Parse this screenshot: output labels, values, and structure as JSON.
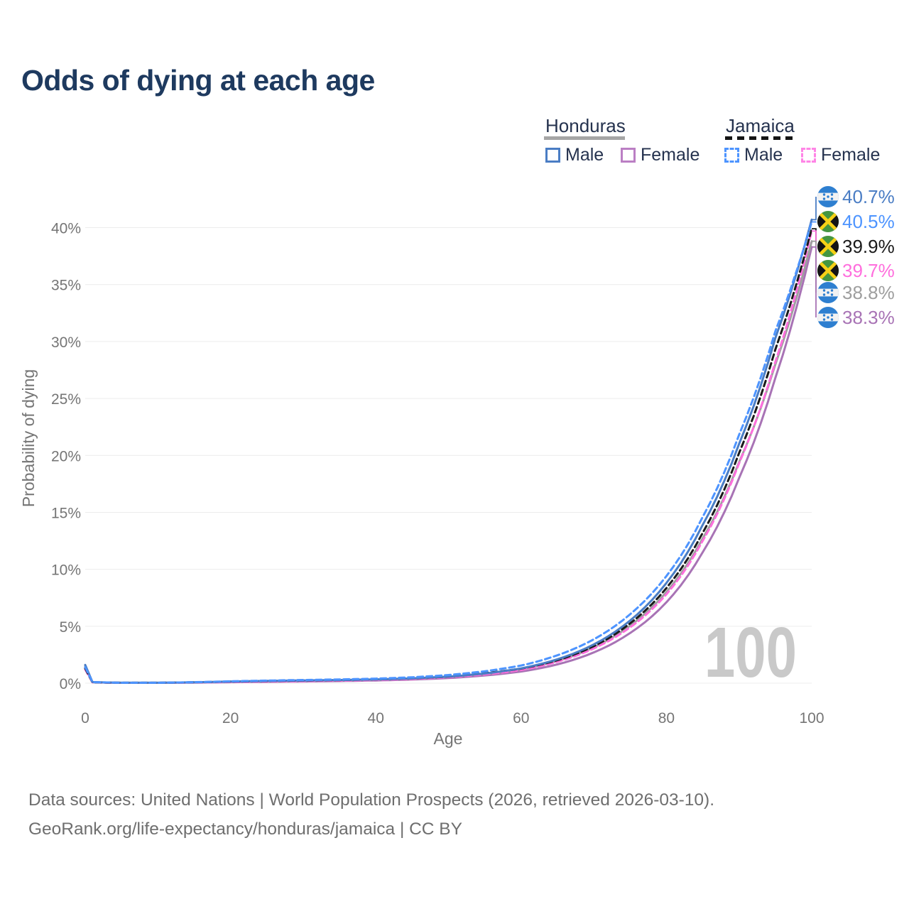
{
  "title": "Odds of dying at each age",
  "legend": {
    "groups": [
      {
        "label": "Honduras",
        "line_style": "solid",
        "underline_color": "#a5a5a5"
      },
      {
        "label": "Jamaica",
        "line_style": "dashed",
        "underline_color": "#141414"
      }
    ],
    "items": [
      {
        "country": "Honduras",
        "label": "Male",
        "color": "#4a7dc4",
        "dashed": false
      },
      {
        "country": "Honduras",
        "label": "Female",
        "color": "#a873b5",
        "dashed": false
      },
      {
        "country": "Jamaica",
        "label": "Male",
        "color": "#4d94ff",
        "dashed": true
      },
      {
        "country": "Jamaica",
        "label": "Female",
        "color": "#ff6edd",
        "dashed": true
      }
    ]
  },
  "axes": {
    "x_title": "Age",
    "y_title": "Probability of dying",
    "x_ticks": [
      "0",
      "20",
      "40",
      "60",
      "80",
      "100"
    ],
    "y_ticks": [
      "0%",
      "5%",
      "10%",
      "15%",
      "20%",
      "25%",
      "30%",
      "35%",
      "40%"
    ],
    "x_range": [
      0,
      100
    ],
    "y_range_percent": [
      0,
      40
    ],
    "grid": "horizontal",
    "tick_color": "#757575",
    "grid_color": "#ececec"
  },
  "watermark": "100",
  "chart_data": {
    "type": "line",
    "title": "Odds of dying at each age",
    "xlabel": "Age",
    "ylabel": "Probability of dying",
    "xlim": [
      0,
      100
    ],
    "ylim_percent": [
      0,
      40
    ],
    "x": [
      0,
      1,
      5,
      10,
      15,
      20,
      25,
      30,
      35,
      40,
      45,
      50,
      55,
      60,
      65,
      70,
      75,
      80,
      85,
      90,
      95,
      100
    ],
    "series": [
      {
        "name": "Honduras Male",
        "country": "Honduras",
        "sex": "male",
        "color": "#4a7dc4",
        "dashed": false,
        "end_label": "40.7%",
        "values": [
          1.6,
          0.1,
          0.04,
          0.04,
          0.08,
          0.15,
          0.2,
          0.24,
          0.28,
          0.33,
          0.42,
          0.58,
          0.85,
          1.3,
          2.1,
          3.4,
          5.5,
          8.8,
          13.9,
          21.0,
          30.3,
          40.7
        ]
      },
      {
        "name": "Honduras Female",
        "country": "Honduras",
        "sex": "female",
        "color": "#a873b5",
        "dashed": false,
        "end_label": "38.3%",
        "values": [
          1.35,
          0.08,
          0.03,
          0.03,
          0.05,
          0.09,
          0.12,
          0.15,
          0.19,
          0.24,
          0.32,
          0.45,
          0.68,
          1.02,
          1.65,
          2.7,
          4.4,
          7.1,
          11.5,
          18.0,
          26.8,
          38.3
        ]
      },
      {
        "name": "Honduras Both sexes",
        "country": "Honduras",
        "sex": "all",
        "color": "#9e9e9e",
        "dashed": false,
        "end_label": "38.8%",
        "values": [
          1.5,
          0.09,
          0.035,
          0.035,
          0.07,
          0.12,
          0.17,
          0.21,
          0.25,
          0.3,
          0.39,
          0.54,
          0.8,
          1.22,
          1.95,
          3.15,
          5.05,
          8.0,
          12.7,
          19.4,
          28.0,
          38.8
        ]
      },
      {
        "name": "Jamaica Male",
        "country": "Jamaica",
        "sex": "male",
        "color": "#4d94ff",
        "dashed": true,
        "end_label": "40.5%",
        "values": [
          1.4,
          0.09,
          0.04,
          0.04,
          0.09,
          0.17,
          0.23,
          0.28,
          0.33,
          0.4,
          0.52,
          0.72,
          1.05,
          1.55,
          2.45,
          3.85,
          6.05,
          9.4,
          14.6,
          21.8,
          30.9,
          40.5
        ]
      },
      {
        "name": "Jamaica Female",
        "country": "Jamaica",
        "sex": "female",
        "color": "#ff6edd",
        "dashed": true,
        "end_label": "39.7%",
        "values": [
          1.2,
          0.07,
          0.03,
          0.03,
          0.06,
          0.1,
          0.14,
          0.18,
          0.22,
          0.28,
          0.37,
          0.52,
          0.77,
          1.16,
          1.88,
          3.05,
          4.9,
          7.8,
          12.5,
          19.3,
          28.2,
          39.7
        ]
      },
      {
        "name": "Jamaica Both sexes",
        "country": "Jamaica",
        "sex": "all",
        "color": "#1a1a1a",
        "dashed": true,
        "end_label": "39.9%",
        "values": [
          1.3,
          0.08,
          0.035,
          0.035,
          0.08,
          0.14,
          0.19,
          0.23,
          0.27,
          0.33,
          0.43,
          0.57,
          0.88,
          1.28,
          2.02,
          3.25,
          5.25,
          8.35,
          13.2,
          20.2,
          29.3,
          39.9
        ]
      }
    ],
    "legend_position": "top-right",
    "end_labels": [
      "40.7%",
      "40.5%",
      "39.9%",
      "39.7%",
      "38.8%",
      "38.3%"
    ]
  },
  "footer": {
    "line1": "Data sources: United Nations | World Population Prospects (2026, retrieved 2026-03-10).",
    "line2": "GeoRank.org/life-expectancy/honduras/jamaica | CC BY"
  }
}
